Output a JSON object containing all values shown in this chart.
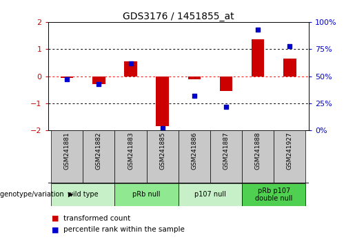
{
  "title": "GDS3176 / 1451855_at",
  "samples": [
    "GSM241881",
    "GSM241882",
    "GSM241883",
    "GSM241885",
    "GSM241886",
    "GSM241887",
    "GSM241888",
    "GSM241927"
  ],
  "red_bars": [
    -0.05,
    -0.3,
    0.55,
    -1.85,
    -0.12,
    -0.55,
    1.35,
    0.65
  ],
  "blue_dots": [
    47,
    43,
    62,
    2,
    32,
    22,
    93,
    78
  ],
  "ylim_left": [
    -2,
    2
  ],
  "ylim_right": [
    0,
    100
  ],
  "yticks_left": [
    -2,
    -1,
    0,
    1,
    2
  ],
  "yticks_right": [
    0,
    25,
    50,
    75,
    100
  ],
  "groups": [
    {
      "label": "wild type",
      "samples": [
        0,
        1
      ],
      "color": "#c8f0c8"
    },
    {
      "label": "pRb null",
      "samples": [
        2,
        3
      ],
      "color": "#90e890"
    },
    {
      "label": "p107 null",
      "samples": [
        4,
        5
      ],
      "color": "#c8f0c8"
    },
    {
      "label": "pRb p107\ndouble null",
      "samples": [
        6,
        7
      ],
      "color": "#50d050"
    }
  ],
  "bar_color": "#cc0000",
  "dot_color": "#0000cc",
  "legend_labels": [
    "transformed count",
    "percentile rank within the sample"
  ],
  "genotype_label": "genotype/variation",
  "background_color": "#ffffff",
  "tick_label_color_left": "#cc0000",
  "tick_label_color_right": "#0000cc",
  "sample_box_color": "#c8c8c8",
  "group_divider_color": "#000000"
}
